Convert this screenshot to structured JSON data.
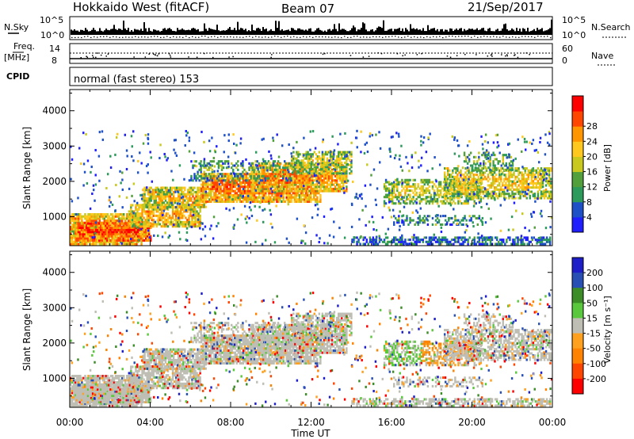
{
  "header": {
    "station": "Hokkaido West (fitACF)",
    "beam": "Beam 07",
    "date": "21/Sep/2017"
  },
  "strip_labels": {
    "nsky": "N.Sky",
    "nsearch": "N.Search",
    "freq": "Freq.",
    "freq_unit": "[MHz]",
    "nave": "Nave",
    "cpid": "CPID",
    "program": "normal (fast stereo) 153"
  },
  "strip_ticks": {
    "noise_top": "10^5",
    "noise_bottom": "10^0",
    "freq_top": "14",
    "freq_bottom": "8",
    "nave_top": "60",
    "nave_bottom": "0"
  },
  "chart_data": [
    {
      "type": "heatmap",
      "panel": "power",
      "ylabel": "Slant Range [km]",
      "xlabel": "Time UT",
      "ylim": [
        180,
        4600
      ],
      "yticks": [
        "1000",
        "2000",
        "3000",
        "4000"
      ],
      "xticks": [
        "00:00",
        "04:00",
        "08:00",
        "12:00",
        "16:00",
        "20:00",
        "00:00"
      ],
      "colorbar": {
        "label": "Power [dB]",
        "ticks": [
          "4",
          "8",
          "12",
          "16",
          "20",
          "24",
          "28"
        ],
        "colors": [
          "#1e1eff",
          "#1e50c8",
          "#2b9a5a",
          "#52a03c",
          "#c8c81e",
          "#ffc81e",
          "#ff9600",
          "#ff4600",
          "#ff0000"
        ]
      }
    },
    {
      "type": "heatmap",
      "panel": "velocity",
      "ylabel": "Slant Range [km]",
      "xlabel": "Time UT",
      "ylim": [
        180,
        4600
      ],
      "yticks": [
        "1000",
        "2000",
        "3000",
        "4000"
      ],
      "xticks": [
        "00:00",
        "04:00",
        "08:00",
        "12:00",
        "16:00",
        "20:00",
        "00:00"
      ],
      "colorbar": {
        "label": "Velocity [m s⁻¹]",
        "ticks": [
          "200",
          "100",
          "50",
          "15",
          "-15",
          "-50",
          "-100",
          "-200"
        ],
        "colors": [
          "#1e1ec8",
          "#2850b4",
          "#3c8c28",
          "#5ac83c",
          "#bebeb4",
          "#ffa01e",
          "#ff8200",
          "#ff4600",
          "#ff0000"
        ]
      }
    }
  ]
}
